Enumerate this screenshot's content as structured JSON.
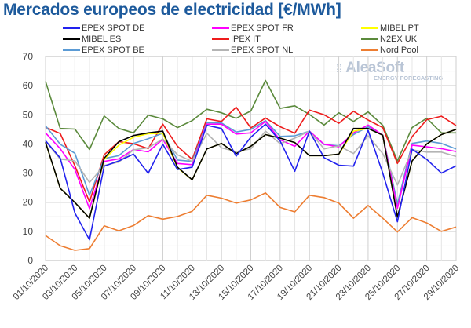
{
  "chart_data": {
    "type": "line",
    "title": "Mercados europeos de electricidad [€/MWh]",
    "xlabel": "",
    "ylabel": "",
    "ylim": [
      0,
      70
    ],
    "yticks": [
      0,
      10,
      20,
      30,
      40,
      50,
      60,
      70
    ],
    "grid": true,
    "legend_position": "top",
    "watermark": {
      "name": "AleaSoft",
      "subtitle": "ENERGY FORECASTING"
    },
    "x": [
      "01/10/2020",
      "02/10/2020",
      "03/10/2020",
      "04/10/2020",
      "05/10/2020",
      "06/10/2020",
      "07/10/2020",
      "08/10/2020",
      "09/10/2020",
      "10/10/2020",
      "11/10/2020",
      "12/10/2020",
      "13/10/2020",
      "14/10/2020",
      "15/10/2020",
      "16/10/2020",
      "17/10/2020",
      "18/10/2020",
      "19/10/2020",
      "20/10/2020",
      "21/10/2020",
      "22/10/2020",
      "23/10/2020",
      "24/10/2020",
      "25/10/2020",
      "26/10/2020",
      "27/10/2020",
      "28/10/2020",
      "29/10/2020"
    ],
    "xtick_labels": [
      "01/10/2020",
      "03/10/2020",
      "05/10/2020",
      "07/10/2020",
      "09/10/2020",
      "11/10/2020",
      "13/10/2020",
      "15/10/2020",
      "17/10/2020",
      "19/10/2020",
      "21/10/2020",
      "23/10/2020",
      "25/10/2020",
      "27/10/2020",
      "29/10/2020"
    ],
    "series": [
      {
        "name": "N2EX UK",
        "color": "#5b8a3c",
        "values": [
          61.5,
          45.3,
          45.1,
          38.1,
          49.6,
          45.3,
          43.8,
          49.9,
          48.6,
          45.6,
          48.0,
          51.9,
          50.7,
          48.8,
          51.3,
          61.8,
          52.2,
          53.1,
          50.1,
          46.5,
          50.7,
          47.7,
          51.0,
          46.4,
          34.2,
          45.6,
          48.8,
          43.8,
          43.8
        ]
      },
      {
        "name": "IPEX IT",
        "color": "#ee1c1c",
        "values": [
          45.7,
          43.6,
          32.5,
          20.1,
          36.3,
          40.8,
          40.1,
          38.4,
          46.8,
          39.2,
          34.7,
          48.6,
          47.7,
          52.6,
          45.5,
          48.9,
          45.9,
          43.7,
          51.6,
          50.0,
          47.1,
          51.2,
          48.2,
          45.6,
          33.3,
          42.5,
          48.3,
          49.5,
          46.3
        ]
      },
      {
        "name": "EPEX SPOT BE",
        "color": "#5b9bd5",
        "values": [
          46.2,
          39.9,
          36.8,
          22.4,
          35.0,
          36.0,
          40.2,
          41.8,
          43.7,
          34.5,
          34.0,
          47.3,
          47.2,
          44.1,
          45.0,
          48.0,
          42.6,
          42.8,
          44.4,
          39.8,
          39.4,
          43.2,
          45.9,
          43.0,
          19.4,
          40.2,
          41.0,
          40.2,
          38.3
        ]
      },
      {
        "name": "EPEX SPOT FR",
        "color": "#ff00ff",
        "values": [
          43.8,
          38.4,
          31.2,
          17.8,
          34.0,
          34.9,
          38.1,
          37.3,
          41.6,
          33.3,
          32.9,
          46.8,
          46.8,
          43.4,
          43.8,
          47.7,
          41.4,
          39.2,
          44.4,
          39.9,
          39.0,
          43.8,
          46.5,
          43.0,
          17.9,
          39.6,
          39.0,
          38.4,
          37.4
        ]
      },
      {
        "name": "EPEX SPOT NL",
        "color": "#b4b4b4",
        "values": [
          41.0,
          34.8,
          34.2,
          26.8,
          32.6,
          33.8,
          38.0,
          38.7,
          41.7,
          36.3,
          34.0,
          43.7,
          38.7,
          37.4,
          38.3,
          44.4,
          40.1,
          42.0,
          44.4,
          38.3,
          39.4,
          36.7,
          42.8,
          36.7,
          25.9,
          38.0,
          37.2,
          37.2,
          35.7
        ]
      },
      {
        "name": "MIBEL PT",
        "color": "#ffff00",
        "values": [
          40.5,
          24.8,
          19.9,
          14.5,
          34.7,
          39.6,
          42.3,
          43.5,
          43.7,
          31.8,
          27.7,
          38.3,
          40.2,
          36.7,
          39.2,
          43.2,
          42.0,
          40.5,
          36.0,
          36.0,
          36.5,
          44.4,
          45.3,
          43.0,
          14.9,
          34.2,
          40.0,
          43.2,
          45.0
        ]
      },
      {
        "name": "MIBEL ES",
        "color": "#000000",
        "values": [
          40.6,
          24.8,
          19.9,
          14.5,
          35.1,
          40.8,
          42.9,
          43.8,
          44.4,
          32.0,
          27.7,
          38.3,
          40.2,
          36.7,
          39.2,
          43.2,
          42.0,
          40.5,
          36.0,
          36.0,
          36.5,
          45.3,
          45.3,
          43.0,
          14.9,
          34.2,
          40.0,
          43.2,
          45.0
        ]
      },
      {
        "name": "EPEX SPOT DE",
        "color": "#2222ee",
        "values": [
          41.1,
          35.2,
          16.3,
          7.1,
          32.4,
          34.2,
          36.5,
          29.9,
          39.9,
          31.2,
          32.0,
          46.4,
          45.3,
          35.8,
          42.3,
          46.8,
          41.0,
          30.6,
          44.4,
          35.3,
          32.7,
          32.4,
          44.7,
          30.0,
          13.3,
          38.2,
          34.7,
          30.0,
          32.5
        ]
      },
      {
        "name": "Nord Pool",
        "color": "#ed7d31",
        "values": [
          8.6,
          5.1,
          3.5,
          4.1,
          11.9,
          10.2,
          12.0,
          15.4,
          14.2,
          15.1,
          16.9,
          22.4,
          21.4,
          19.7,
          20.8,
          23.2,
          18.2,
          16.7,
          22.4,
          21.6,
          19.7,
          14.5,
          18.9,
          14.5,
          9.8,
          14.7,
          12.9,
          10.0,
          11.5
        ]
      }
    ],
    "legend": [
      {
        "name": "EPEX SPOT DE",
        "color": "#2222ee"
      },
      {
        "name": "EPEX SPOT FR",
        "color": "#ff00ff"
      },
      {
        "name": "MIBEL PT",
        "color": "#ffff00"
      },
      {
        "name": "MIBEL ES",
        "color": "#000000"
      },
      {
        "name": "IPEX IT",
        "color": "#ee1c1c"
      },
      {
        "name": "N2EX UK",
        "color": "#5b8a3c"
      },
      {
        "name": "EPEX SPOT BE",
        "color": "#5b9bd5"
      },
      {
        "name": "EPEX SPOT NL",
        "color": "#b4b4b4"
      },
      {
        "name": "Nord Pool",
        "color": "#ed7d31"
      }
    ]
  },
  "colors": {
    "title": "#1d5a9c",
    "grid": "#d9d9d9",
    "watermark": "#b9c5d6"
  }
}
